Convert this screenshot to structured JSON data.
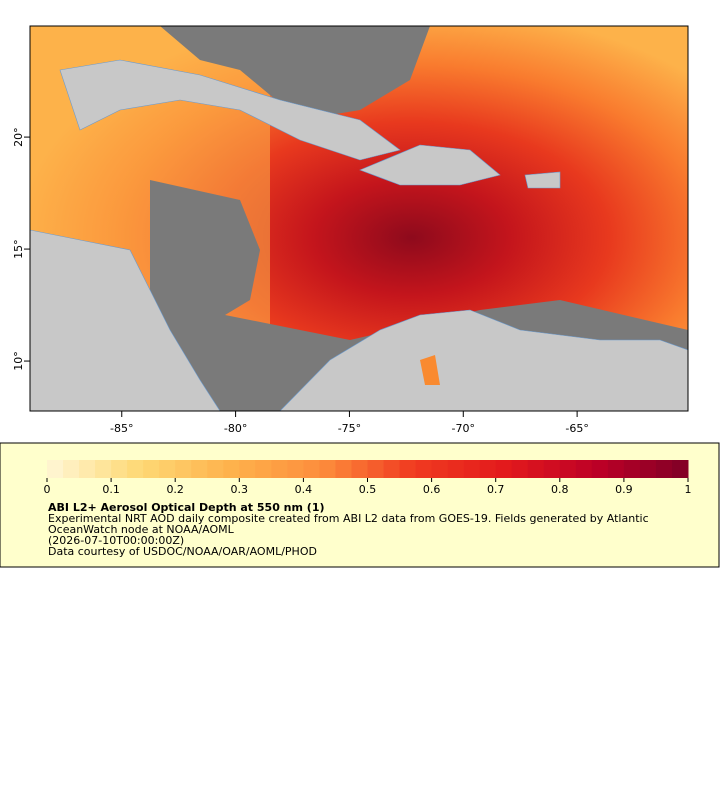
{
  "chart_data": {
    "type": "map",
    "xlim": [
      -89.03,
      -60.13
    ],
    "ylim": [
      7.77,
      24.96
    ],
    "xticks": [
      {
        "value": -85,
        "label": "-85°"
      },
      {
        "value": -80,
        "label": "-80°"
      },
      {
        "value": -75,
        "label": "-75°"
      },
      {
        "value": -70,
        "label": "-70°"
      },
      {
        "value": -65,
        "label": "-65°"
      }
    ],
    "yticks": [
      {
        "value": 10,
        "label": "10°"
      },
      {
        "value": 15,
        "label": "15°"
      },
      {
        "value": 20,
        "label": "20°"
      }
    ],
    "colorbar": {
      "lim": [
        0,
        1
      ],
      "ticks": [
        0,
        0.1,
        0.2,
        0.3,
        0.4,
        0.5,
        0.6,
        0.7,
        0.8,
        0.9,
        1
      ],
      "colors": [
        "#fff7d6",
        "#fed976",
        "#feb24c",
        "#fd8d3c",
        "#f03b20",
        "#e31a1c",
        "#bd0026",
        "#800026"
      ]
    },
    "legend": {
      "title": "ABI L2+ Aerosol Optical Depth at 550 nm (1)",
      "lines": [
        "Experimental NRT AOD daily composite created from ABI L2 data from GOES-19. Fields generated by Atlantic",
        "OceanWatch node at NOAA/AOML",
        "(2026-07-10T00:00:00Z)",
        "Data courtesy of USDOC/NOAA/OAR/AOML/PHOD"
      ]
    }
  }
}
